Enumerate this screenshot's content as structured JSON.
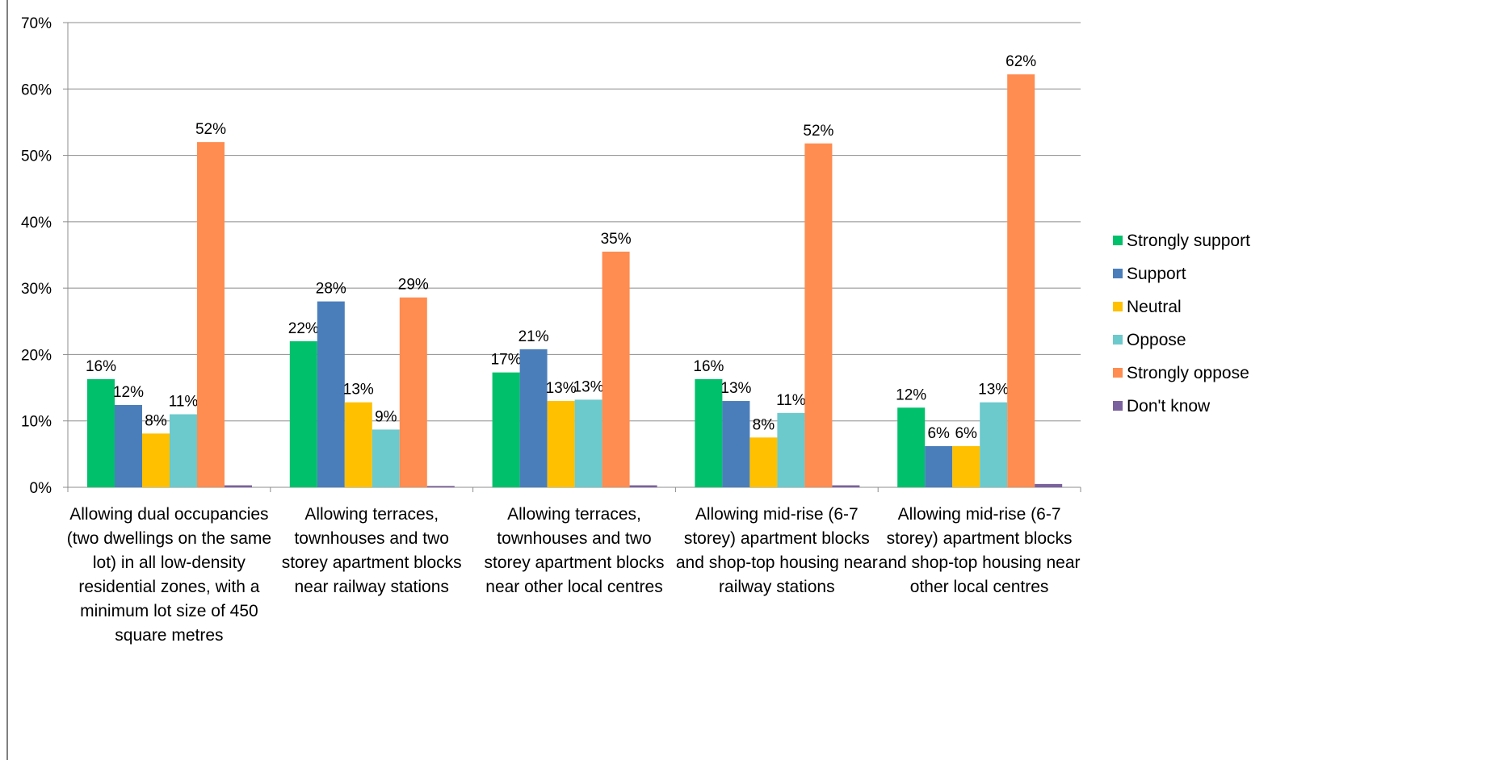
{
  "chart_data": {
    "type": "bar",
    "categories": [
      [
        "Allowing dual occupancies",
        "(two dwellings on the same",
        "lot) in all low-density",
        "residential zones, with a",
        "minimum lot size of 450",
        "square metres"
      ],
      [
        "Allowing terraces,",
        "townhouses and two",
        "storey apartment blocks",
        "near railway stations"
      ],
      [
        "Allowing terraces,",
        "townhouses and two",
        "storey apartment blocks",
        "near other local centres"
      ],
      [
        "Allowing mid-rise (6-7",
        "storey) apartment blocks",
        "and shop-top housing near",
        "railway stations"
      ],
      [
        "Allowing mid-rise (6-7",
        "storey) apartment blocks",
        "and shop-top housing near",
        "other local centres"
      ]
    ],
    "series": [
      {
        "name": "Strongly support",
        "color": "#00c06b",
        "values": [
          16.3,
          22.0,
          17.3,
          16.3,
          12.0
        ],
        "labels": [
          "16%",
          "22%",
          "17%",
          "16%",
          "12%"
        ]
      },
      {
        "name": "Support",
        "color": "#4a7ebb",
        "values": [
          12.4,
          28.0,
          20.8,
          13.0,
          6.2
        ],
        "labels": [
          "12%",
          "28%",
          "21%",
          "13%",
          "6%"
        ]
      },
      {
        "name": "Neutral",
        "color": "#ffc000",
        "values": [
          8.1,
          12.8,
          13.0,
          7.5,
          6.2
        ],
        "labels": [
          "8%",
          "13%",
          "13%",
          "8%",
          "6%"
        ]
      },
      {
        "name": "Oppose",
        "color": "#6cc9cc",
        "values": [
          11.0,
          8.7,
          13.2,
          11.2,
          12.8
        ],
        "labels": [
          "11%",
          "9%",
          "13%",
          "11%",
          "13%"
        ]
      },
      {
        "name": "Strongly oppose",
        "color": "#ff8c50",
        "values": [
          52.0,
          28.6,
          35.5,
          51.8,
          62.2
        ],
        "labels": [
          "52%",
          "29%",
          "35%",
          "52%",
          "62%"
        ]
      },
      {
        "name": "Don't know",
        "color": "#7b619e",
        "values": [
          0.3,
          0.2,
          0.3,
          0.3,
          0.5
        ],
        "labels": [
          "",
          "",
          "",
          "",
          ""
        ]
      }
    ],
    "y_ticks": [
      "0%",
      "10%",
      "20%",
      "30%",
      "40%",
      "50%",
      "60%",
      "70%"
    ],
    "ylim": [
      0,
      70
    ],
    "grid": true,
    "legend_position": "right"
  }
}
